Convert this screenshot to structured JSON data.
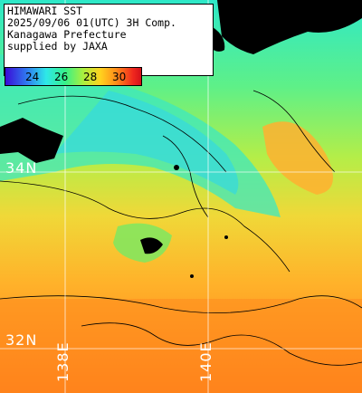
{
  "info": {
    "title": "HIMAWARI SST",
    "datetime": "2025/09/06 01(UTC) 3H Comp.",
    "region": "Kanagawa Prefecture",
    "credit": "supplied by JAXA"
  },
  "legend": {
    "ticks": [
      "24",
      "26",
      "28",
      "30"
    ]
  },
  "grid_labels": {
    "lat_34": "34N",
    "lat_32": "32N",
    "lon_138": "138E",
    "lon_140": "140E"
  },
  "colors": {
    "land": "#000000",
    "grid": "#ffffff",
    "cold": "#2ee8c8",
    "mid": "#a8f040",
    "warm": "#ffd21e",
    "hot": "#ff7a1a"
  }
}
